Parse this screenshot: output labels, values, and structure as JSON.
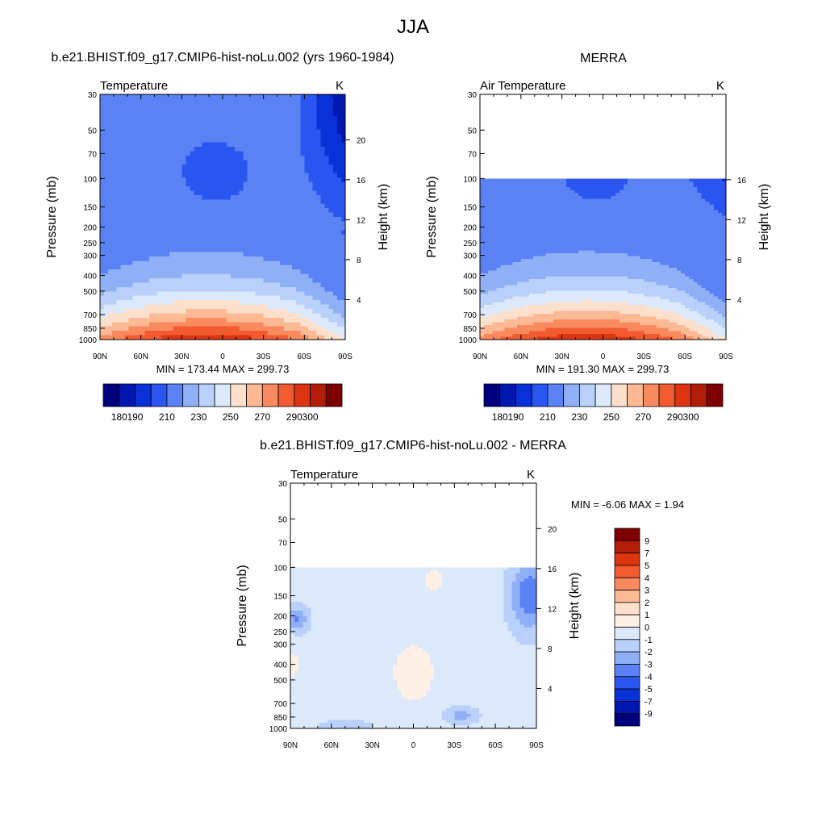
{
  "figure": {
    "title": "JJA",
    "panel1_title": "b.e21.BHIST.f09_g17.CMIP6-hist-noLu.002 (yrs 1960-1984)",
    "panel2_title": "MERRA",
    "panel3_title": "b.e21.BHIST.f09_g17.CMIP6-hist-noLu.002 - MERRA"
  },
  "chart_data": [
    {
      "type": "heatmap",
      "id": "model",
      "subtitle_left": "Temperature",
      "subtitle_right": "K",
      "ylabel": "Pressure (mb)",
      "ylabel_right": "Height (km)",
      "x_tick_labels": [
        "90N",
        "60N",
        "30N",
        "0",
        "30S",
        "60S",
        "90S"
      ],
      "x_range": [
        90,
        -90
      ],
      "y_ticks": [
        30,
        50,
        70,
        100,
        150,
        200,
        250,
        300,
        400,
        500,
        700,
        850,
        1000
      ],
      "y_range": [
        30,
        1000
      ],
      "y_scale": "log",
      "height_ticks_km": [
        4,
        8,
        12,
        16,
        20
      ],
      "min_max_text": "MIN = 173.44  MAX = 299.73",
      "min": 173.44,
      "max": 299.73,
      "data_top_mb": 30,
      "levels": [
        180,
        190,
        200,
        210,
        220,
        230,
        240,
        250,
        260,
        270,
        280,
        290,
        300
      ],
      "colorbar_labels": [
        "180",
        "190",
        "210",
        "230",
        "250",
        "270",
        "290",
        "300"
      ],
      "colors": [
        "#00007f",
        "#0018b0",
        "#0a30d8",
        "#2a55f0",
        "#5a82f5",
        "#8fb0f7",
        "#b8d0fa",
        "#dce9fb",
        "#fde0cc",
        "#fcb994",
        "#f98a5f",
        "#f25a2f",
        "#dc3510",
        "#b31c06",
        "#7f0000"
      ],
      "legend_position": "bottom"
    },
    {
      "type": "heatmap",
      "id": "obs",
      "subtitle_left": "Air Temperature",
      "subtitle_right": "K",
      "ylabel": "Pressure (mb)",
      "ylabel_right": "Height (km)",
      "x_tick_labels": [
        "90N",
        "60N",
        "30N",
        "0",
        "30S",
        "60S",
        "90S"
      ],
      "x_range": [
        90,
        -90
      ],
      "y_ticks": [
        30,
        50,
        70,
        100,
        150,
        200,
        250,
        300,
        400,
        500,
        700,
        850,
        1000
      ],
      "y_range": [
        30,
        1000
      ],
      "y_scale": "log",
      "height_ticks_km": [
        4,
        8,
        12,
        16
      ],
      "min_max_text": "MIN = 191.30  MAX = 299.73",
      "min": 191.3,
      "max": 299.73,
      "data_top_mb": 100,
      "levels": [
        180,
        190,
        200,
        210,
        220,
        230,
        240,
        250,
        260,
        270,
        280,
        290,
        300
      ],
      "colorbar_labels": [
        "180",
        "190",
        "210",
        "230",
        "250",
        "270",
        "290",
        "300"
      ],
      "colors": [
        "#00007f",
        "#0018b0",
        "#0a30d8",
        "#2a55f0",
        "#5a82f5",
        "#8fb0f7",
        "#b8d0fa",
        "#dce9fb",
        "#fde0cc",
        "#fcb994",
        "#f98a5f",
        "#f25a2f",
        "#dc3510",
        "#b31c06",
        "#7f0000"
      ],
      "legend_position": "bottom"
    },
    {
      "type": "heatmap",
      "id": "diff",
      "subtitle_left": "Temperature",
      "subtitle_right": "K",
      "ylabel": "Pressure (mb)",
      "ylabel_right": "Height (km)",
      "x_tick_labels": [
        "90N",
        "60N",
        "30N",
        "0",
        "30S",
        "60S",
        "90S"
      ],
      "x_range": [
        90,
        -90
      ],
      "y_ticks": [
        30,
        50,
        70,
        100,
        150,
        200,
        250,
        300,
        400,
        500,
        700,
        850,
        1000
      ],
      "y_range": [
        30,
        1000
      ],
      "y_scale": "log",
      "height_ticks_km": [
        4,
        8,
        12,
        16,
        20
      ],
      "min_max_text": "MIN =  -6.06  MAX =   1.94",
      "min": -6.06,
      "max": 1.94,
      "data_top_mb": 100,
      "colorbar_labels": [
        "9",
        "7",
        "5",
        "4",
        "3",
        "2",
        "1",
        "0",
        "-1",
        "-2",
        "-3",
        "-4",
        "-5",
        "-7",
        "-9"
      ],
      "colors": [
        "#7f0000",
        "#b31c06",
        "#dc3510",
        "#f25a2f",
        "#f98a5f",
        "#fcb994",
        "#fde0cc",
        "#fef0e4",
        "#dce9fb",
        "#b8d0fa",
        "#8fb0f7",
        "#5a82f5",
        "#2a55f0",
        "#0a30d8",
        "#0018b0",
        "#00007f"
      ],
      "legend_position": "right"
    }
  ]
}
